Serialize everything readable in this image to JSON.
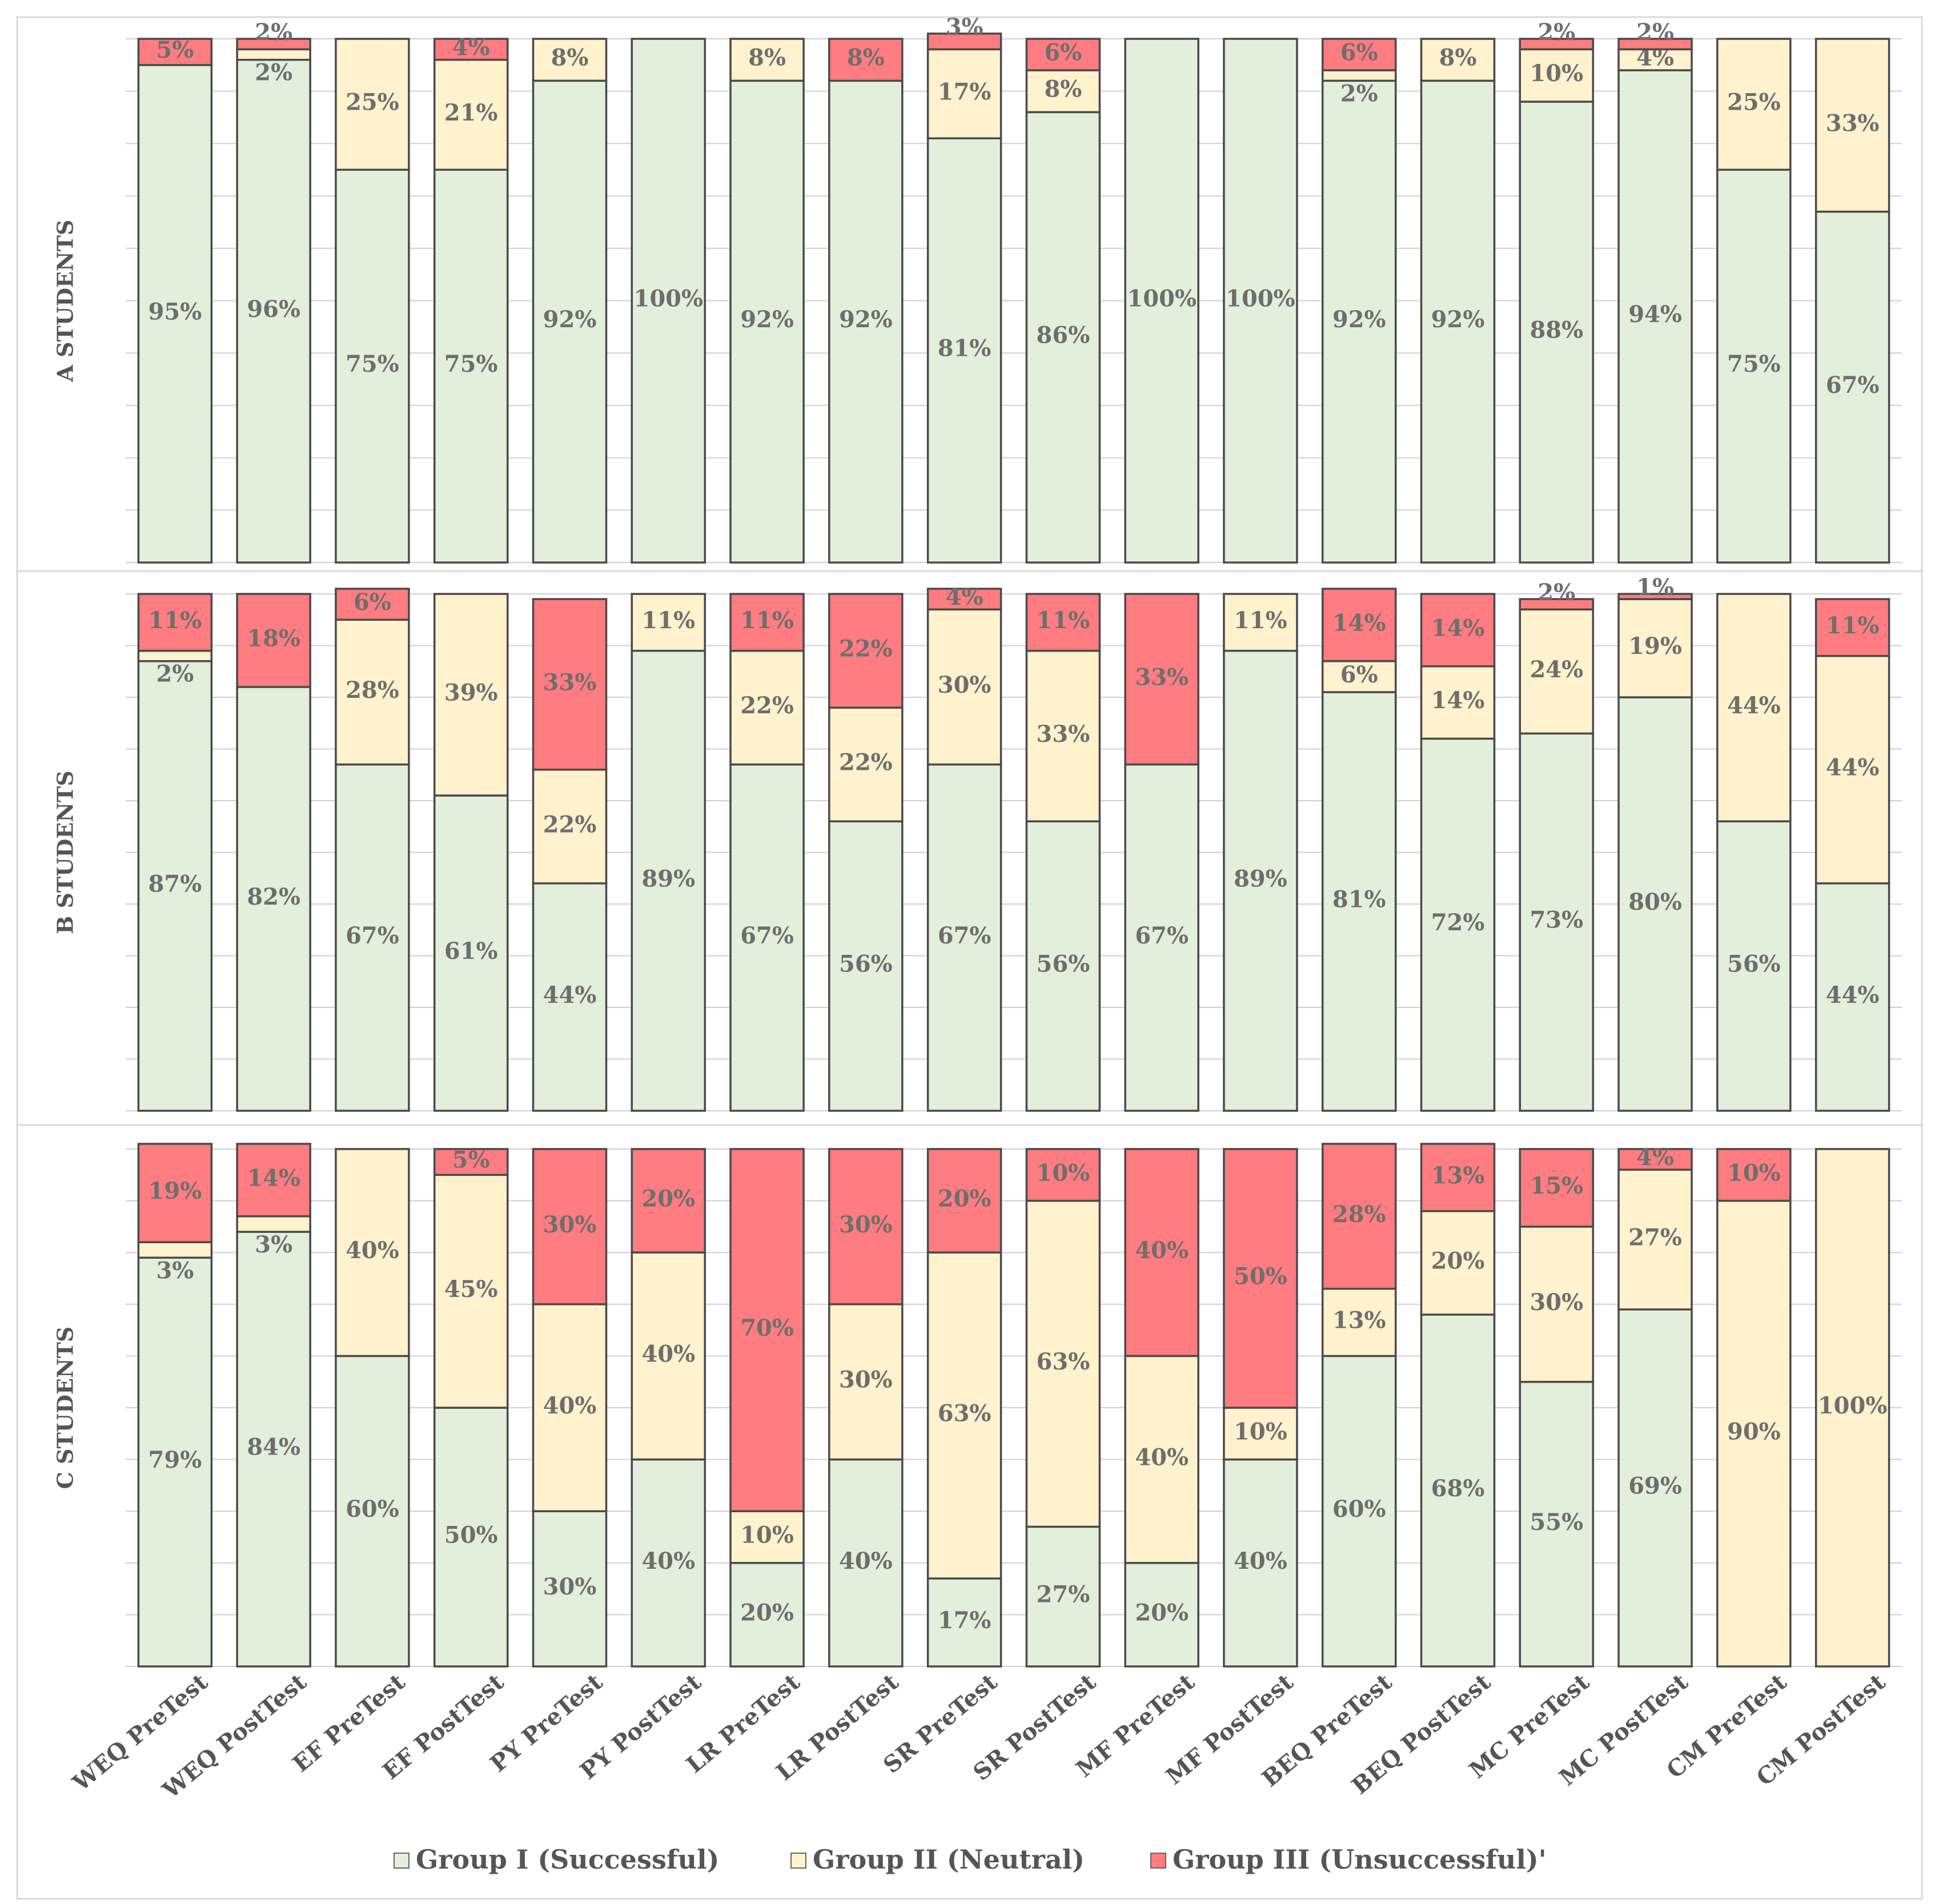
{
  "chart_data": {
    "type": "bar",
    "stacked": true,
    "orientation": "vertical",
    "categories": [
      "WEQ PreTest",
      "WEQ PostTest",
      "EF PreTest",
      "EF PostTest",
      "PY PreTest",
      "PY PostTest",
      "LR PreTest",
      "LR PostTest",
      "SR PreTest",
      "SR PostTest",
      "MF PreTest",
      "MF PostTest",
      "BEQ PreTest",
      "BEQ PostTest",
      "MC PreTest",
      "MC PostTest",
      "CM PreTest",
      "CM PostTest"
    ],
    "ylim": [
      0,
      100
    ],
    "legend": {
      "placement": "bottom",
      "entries": [
        {
          "name": "Group I (Successful)",
          "color": "#e2efda"
        },
        {
          "name": "Group II (Neutral)",
          "color": "#fff2cc"
        },
        {
          "name": "Group III (Unsuccessful)'",
          "color": "#ff7c80"
        }
      ]
    },
    "panels": [
      {
        "title": "A STUDENTS",
        "series": [
          {
            "name": "Group I (Successful)",
            "values": [
              95,
              96,
              75,
              75,
              92,
              100,
              92,
              92,
              81,
              86,
              100,
              100,
              92,
              92,
              88,
              94,
              75,
              67
            ]
          },
          {
            "name": "Group II (Neutral)",
            "values": [
              0,
              2,
              25,
              21,
              8,
              0,
              8,
              0,
              17,
              8,
              0,
              0,
              2,
              8,
              10,
              4,
              25,
              33
            ]
          },
          {
            "name": "Group III (Unsuccessful)'",
            "values": [
              5,
              2,
              0,
              4,
              0,
              0,
              0,
              8,
              3,
              6,
              0,
              0,
              6,
              0,
              2,
              2,
              0,
              0
            ]
          }
        ]
      },
      {
        "title": "B STUDENTS",
        "series": [
          {
            "name": "Group I (Successful)",
            "values": [
              87,
              82,
              67,
              61,
              44,
              89,
              67,
              56,
              67,
              56,
              67,
              89,
              81,
              72,
              73,
              80,
              56,
              44
            ]
          },
          {
            "name": "Group II (Neutral)",
            "values": [
              2,
              0,
              28,
              39,
              22,
              11,
              22,
              22,
              30,
              33,
              0,
              11,
              6,
              14,
              24,
              19,
              44,
              44
            ]
          },
          {
            "name": "Group III (Unsuccessful)'",
            "values": [
              11,
              18,
              6,
              0,
              33,
              0,
              11,
              22,
              4,
              11,
              33,
              0,
              14,
              14,
              2,
              1,
              0,
              11
            ]
          }
        ]
      },
      {
        "title": "C STUDENTS",
        "series": [
          {
            "name": "Group I (Successful)",
            "values": [
              79,
              84,
              60,
              50,
              30,
              40,
              20,
              40,
              17,
              27,
              20,
              40,
              60,
              68,
              55,
              69,
              0,
              0
            ]
          },
          {
            "name": "Group II (Neutral)",
            "values": [
              3,
              3,
              40,
              45,
              40,
              40,
              10,
              30,
              63,
              63,
              40,
              10,
              13,
              20,
              30,
              27,
              90,
              100
            ]
          },
          {
            "name": "Group III (Unsuccessful)'",
            "values": [
              19,
              14,
              0,
              5,
              30,
              20,
              70,
              30,
              20,
              10,
              40,
              50,
              28,
              13,
              15,
              4,
              10,
              0
            ]
          }
        ]
      }
    ]
  }
}
